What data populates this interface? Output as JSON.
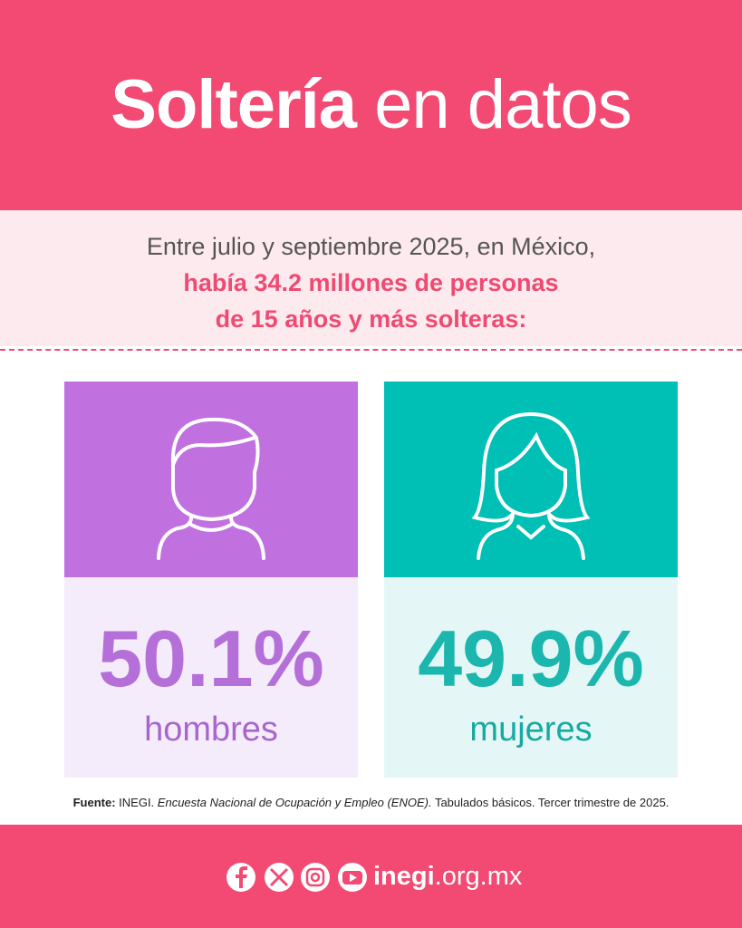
{
  "header": {
    "title_bold": "Soltería",
    "title_rest": "en datos"
  },
  "intro": {
    "line1": "Entre julio y septiembre 2025, en México,",
    "line2": "había 34.2 millones de personas",
    "line3": "de 15 años y más solteras:"
  },
  "cards": [
    {
      "value": "50.1%",
      "label": "hombres"
    },
    {
      "value": "49.9%",
      "label": "mujeres"
    }
  ],
  "source": {
    "label": "Fuente:",
    "org": "INEGI.",
    "survey": "Encuesta Nacional de Ocupación y Empleo (ENOE).",
    "rest": "Tabulados básicos. Tercer trimestre de 2025."
  },
  "footer": {
    "site_bold": "inegi",
    "site_rest": ".org.mx"
  }
}
